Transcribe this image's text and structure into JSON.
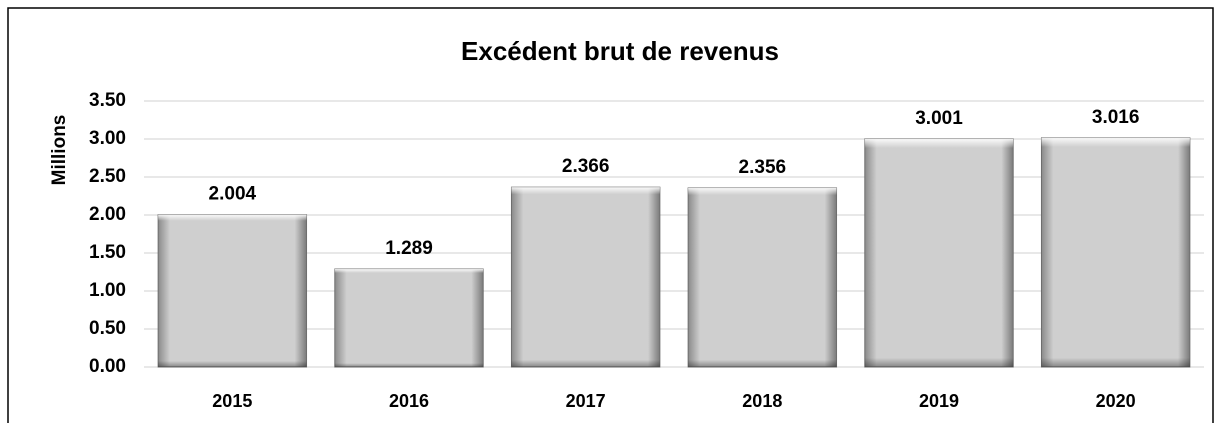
{
  "chart_data": {
    "type": "bar",
    "title": "Excédent brut de revenus",
    "y_label": "Millions",
    "categories": [
      "2015",
      "2016",
      "2017",
      "2018",
      "2019",
      "2020"
    ],
    "values": [
      2.004,
      1.289,
      2.366,
      2.356,
      3.001,
      3.016
    ],
    "color": "#c8c8c8",
    "ylim": [
      0,
      3.5
    ],
    "yticks": [
      {
        "value": 0,
        "label": "0.00"
      },
      {
        "value": 0.5,
        "label": "0.50"
      },
      {
        "value": 1,
        "label": "1.00"
      },
      {
        "value": 1.5,
        "label": "1.50"
      },
      {
        "value": 2,
        "label": "2.00"
      },
      {
        "value": 2.5,
        "label": "2.50"
      },
      {
        "value": 3,
        "label": "3.00"
      },
      {
        "value": 3.5,
        "label": "3.50"
      }
    ],
    "grid": true
  }
}
